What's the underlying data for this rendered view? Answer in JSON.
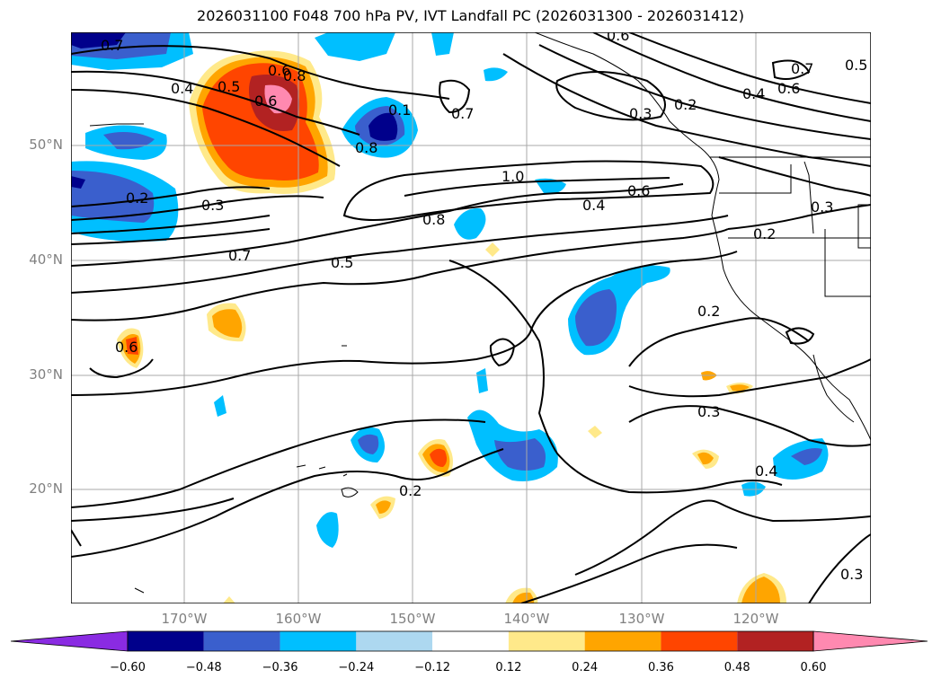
{
  "title": "2026031100 F048 700 hPa PV, IVT Landfall PC (2026031300 - 2026031412)",
  "lat_labels": [
    "50°N",
    "40°N",
    "30°N",
    "20°N"
  ],
  "lon_labels": [
    "170°W",
    "160°W",
    "150°W",
    "140°W",
    "130°W",
    "120°W"
  ],
  "contour_labels": [
    "0.7",
    "0.4",
    "0.5",
    "0.6",
    "0.8",
    "0.1",
    "0.7",
    "0.8",
    "0.6",
    "0.3",
    "0.2",
    "0.7",
    "0.6",
    "0.5",
    "0.6",
    "0.4",
    "0.2",
    "0.3",
    "1.0",
    "0.6",
    "0.4",
    "0.8",
    "0.3",
    "0.2",
    "0.7",
    "0.5",
    "0.2",
    "0.6",
    "0.3",
    "0.2",
    "0.4",
    "0.3"
  ],
  "colorbar": {
    "ticks": [
      "−0.60",
      "−0.48",
      "−0.36",
      "−0.24",
      "−0.12",
      "0.12",
      "0.24",
      "0.36",
      "0.48",
      "0.60"
    ],
    "colors": [
      "#8a2be2",
      "#00008b",
      "#3a5fcd",
      "#00bfff",
      "#add8f0",
      "#ffffff",
      "#ffe98a",
      "#ffa500",
      "#ff4500",
      "#b22222",
      "#ff89b0"
    ]
  },
  "fill_colors": {
    "neg_light": "#add8f0",
    "neg_mid": "#00bfff",
    "neg_strong": "#3a5fcd",
    "neg_max": "#00008b",
    "pos_light": "#ffe98a",
    "pos_mid": "#ffa500",
    "pos_strong": "#ff4500",
    "pos_max": "#b22222",
    "pos_top": "#ff89b0"
  }
}
